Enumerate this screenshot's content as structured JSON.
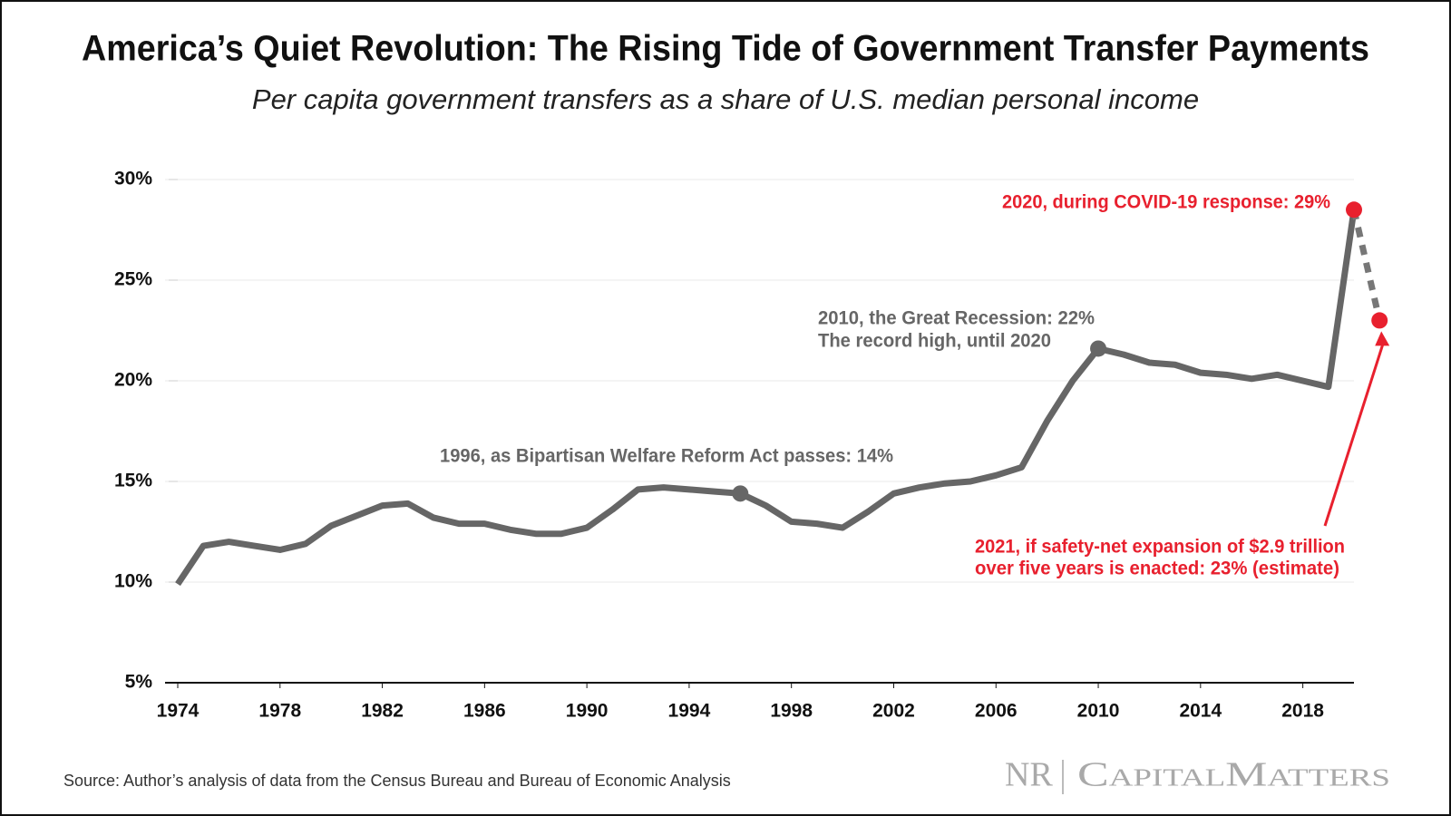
{
  "chart_data": {
    "type": "line",
    "title": "America’s Quiet Revolution: The Rising Tide of Government Transfer Payments",
    "subtitle": "Per capita government transfers as a share of U.S. median personal income",
    "x": [
      1974,
      1975,
      1976,
      1977,
      1978,
      1979,
      1980,
      1981,
      1982,
      1983,
      1984,
      1985,
      1986,
      1987,
      1988,
      1989,
      1990,
      1991,
      1992,
      1993,
      1994,
      1995,
      1996,
      1997,
      1998,
      1999,
      2000,
      2001,
      2002,
      2003,
      2004,
      2005,
      2006,
      2007,
      2008,
      2009,
      2010,
      2011,
      2012,
      2013,
      2014,
      2015,
      2016,
      2017,
      2018,
      2019,
      2020,
      2021
    ],
    "series": [
      {
        "color": "#666666",
        "values": [
          9.9,
          11.8,
          12.0,
          11.8,
          11.6,
          11.9,
          12.8,
          13.3,
          13.8,
          13.9,
          13.2,
          12.9,
          12.9,
          12.6,
          12.4,
          12.4,
          12.7,
          13.6,
          14.6,
          14.7,
          14.6,
          14.5,
          14.4,
          13.8,
          13.0,
          12.9,
          12.7,
          13.5,
          14.4,
          14.7,
          14.9,
          15.0,
          15.3,
          15.7,
          18.0,
          20.0,
          21.6,
          21.3,
          20.9,
          20.8,
          20.4,
          20.3,
          20.1,
          20.3,
          20.0,
          19.7,
          28.5,
          null
        ]
      },
      {
        "color": "#777777",
        "dashed": true,
        "values": [
          null,
          null,
          null,
          null,
          null,
          null,
          null,
          null,
          null,
          null,
          null,
          null,
          null,
          null,
          null,
          null,
          null,
          null,
          null,
          null,
          null,
          null,
          null,
          null,
          null,
          null,
          null,
          null,
          null,
          null,
          null,
          null,
          null,
          null,
          null,
          null,
          null,
          null,
          null,
          null,
          null,
          null,
          null,
          null,
          null,
          null,
          28.5,
          23.0
        ]
      }
    ],
    "xlim": [
      1974,
      2020
    ],
    "xticks": [
      1974,
      1978,
      1982,
      1986,
      1990,
      1994,
      1998,
      2002,
      2006,
      2010,
      2014,
      2018
    ],
    "ylim": [
      5,
      30
    ],
    "yticks": [
      {
        "value": 5,
        "label": "5%"
      },
      {
        "value": 10,
        "label": "10%"
      },
      {
        "value": 15,
        "label": "15%"
      },
      {
        "value": 20,
        "label": "20%"
      },
      {
        "value": 25,
        "label": "25%"
      },
      {
        "value": 30,
        "label": "30%"
      }
    ],
    "grid": true,
    "annotations": [
      {
        "x": 1996,
        "color": "#666666",
        "text": [
          "1996, as Bipartisan Welfare Reform Act passes: 14%"
        ]
      },
      {
        "x": 2010,
        "color": "#666666",
        "text": [
          "2010, the Great Recession: 22%",
          "The record high, until 2020"
        ]
      },
      {
        "x": 2020,
        "color": "#e8202e",
        "text": [
          "2020, during COVID-19 response: 29%"
        ]
      },
      {
        "x": 2021,
        "color": "#e8202e",
        "text": [
          "2021, if safety-net expansion of $2.9 trillion",
          "over five years is enacted: 23% (estimate)"
        ]
      }
    ],
    "source": "Source: Author’s analysis of data from the Census Bureau and Bureau of Economic Analysis",
    "logo": [
      "NR",
      "CapitalMatters"
    ]
  }
}
